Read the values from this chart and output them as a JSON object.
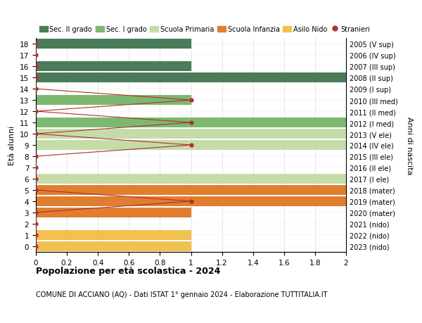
{
  "ages": [
    18,
    17,
    16,
    15,
    14,
    13,
    12,
    11,
    10,
    9,
    8,
    7,
    6,
    5,
    4,
    3,
    2,
    1,
    0
  ],
  "right_labels": [
    "2005 (V sup)",
    "2006 (IV sup)",
    "2007 (III sup)",
    "2008 (II sup)",
    "2009 (I sup)",
    "2010 (III med)",
    "2011 (II med)",
    "2012 (I med)",
    "2013 (V ele)",
    "2014 (IV ele)",
    "2015 (III ele)",
    "2016 (II ele)",
    "2017 (I ele)",
    "2018 (mater)",
    "2019 (mater)",
    "2020 (mater)",
    "2021 (nido)",
    "2022 (nido)",
    "2023 (nido)"
  ],
  "bar_values": [
    1.0,
    0,
    1.0,
    2.0,
    0,
    1.0,
    0,
    2.0,
    2.0,
    2.0,
    0,
    0,
    2.0,
    2.0,
    2.0,
    1.0,
    0,
    1.0,
    1.0
  ],
  "bar_colors": [
    "#4a7c59",
    "#4a7c59",
    "#4a7c59",
    "#4a7c59",
    "#4a7c59",
    "#7db870",
    "#7db870",
    "#7db870",
    "#c5dca8",
    "#c5dca8",
    "#c5dca8",
    "#c5dca8",
    "#c5dca8",
    "#e07e30",
    "#e07e30",
    "#e07e30",
    "#f0c050",
    "#f0c050",
    "#f0c050"
  ],
  "stranieri_values": [
    0,
    0,
    0,
    0,
    0,
    1.0,
    0,
    1.0,
    0,
    1.0,
    0,
    0,
    0,
    0,
    1.0,
    0,
    0,
    0,
    0
  ],
  "xlim": [
    0,
    2.0
  ],
  "xticks": [
    0,
    0.2,
    0.4,
    0.6,
    0.8,
    1.0,
    1.2,
    1.4,
    1.6,
    1.8,
    2.0
  ],
  "ylabel_left": "Età alunni",
  "ylabel_right": "Anni di nascita",
  "legend_items": [
    {
      "label": "Sec. II grado",
      "color": "#4a7c59"
    },
    {
      "label": "Sec. I grado",
      "color": "#7db870"
    },
    {
      "label": "Scuola Primaria",
      "color": "#c5dca8"
    },
    {
      "label": "Scuola Infanzia",
      "color": "#e07e30"
    },
    {
      "label": "Asilo Nido",
      "color": "#f0c050"
    },
    {
      "label": "Stranieri",
      "color": "#c0392b"
    }
  ],
  "title": "Popolazione per età scolastica - 2024",
  "subtitle": "COMUNE DI ACCIANO (AQ) - Dati ISTAT 1° gennaio 2024 - Elaborazione TUTTITALIA.IT",
  "bg_color": "#ffffff",
  "bar_height": 0.85,
  "stranieri_line_color": "#b03030",
  "stranieri_dot_color": "#b03030"
}
